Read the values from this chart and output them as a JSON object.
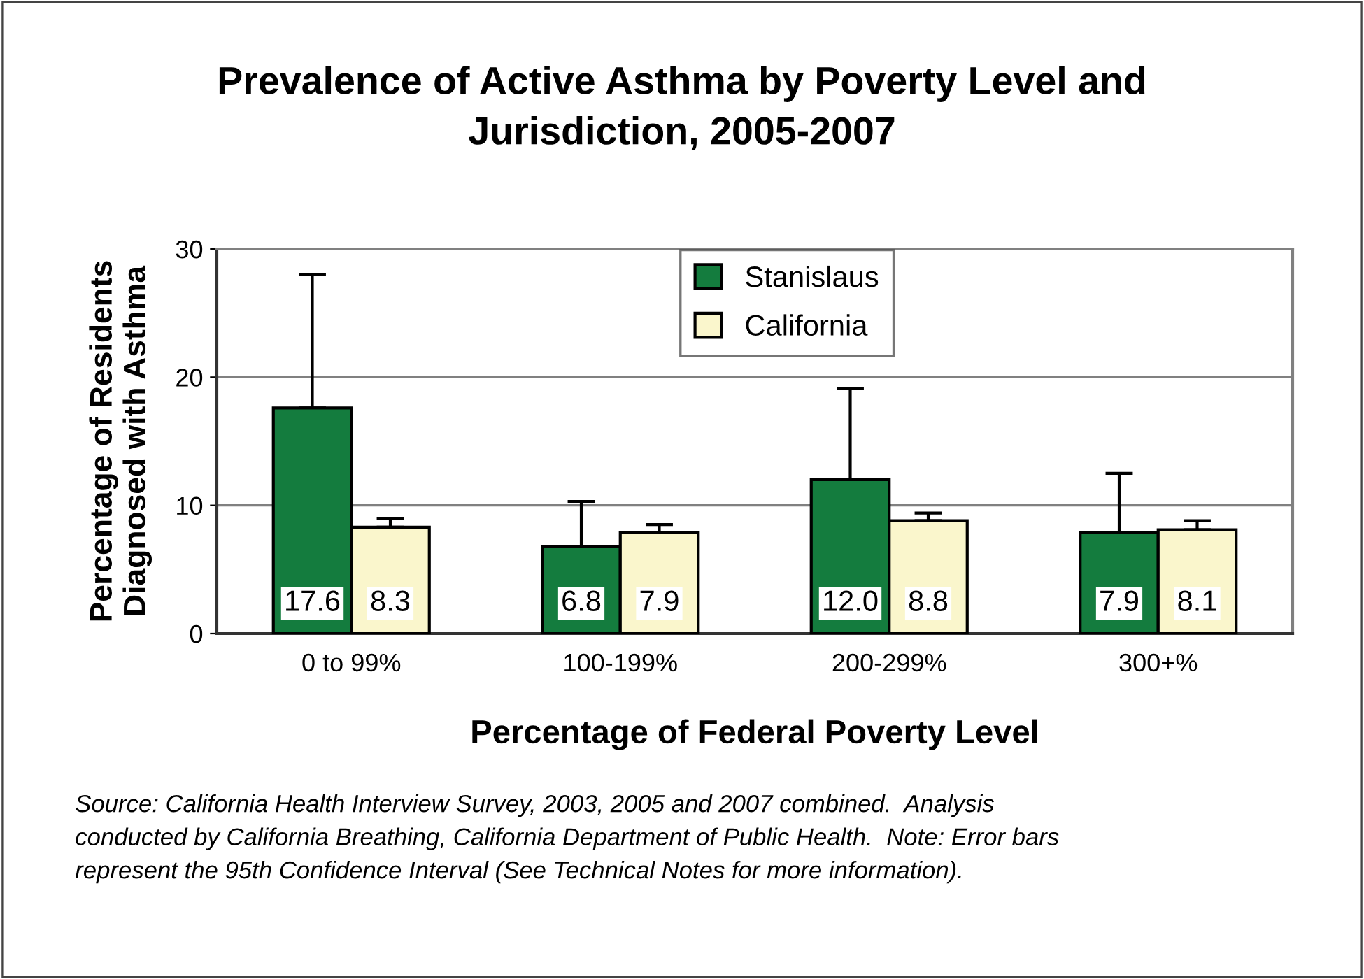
{
  "chart_data": {
    "type": "bar",
    "title": "Prevalence of Active Asthma by Poverty Level and\nJurisdiction, 2005-2007",
    "xlabel": "Percentage of Federal Poverty Level",
    "ylabel": "Percentage of Residents\nDiagnosed with Asthma",
    "categories": [
      "0 to 99%",
      "100-199%",
      "200-299%",
      "300+%"
    ],
    "series": [
      {
        "name": "Stanislaus",
        "color": "#147c3e",
        "values": [
          17.6,
          6.8,
          12.0,
          7.9
        ],
        "value_labels": [
          "17.6",
          "6.8",
          "12.0",
          "7.9"
        ],
        "errors": [
          [
            17.6,
            28.0
          ],
          [
            6.8,
            10.3
          ],
          [
            12.0,
            19.1
          ],
          [
            7.9,
            12.5
          ]
        ]
      },
      {
        "name": "California",
        "color": "#faf6cc",
        "values": [
          8.3,
          7.9,
          8.8,
          8.1
        ],
        "value_labels": [
          "8.3",
          "7.9",
          "8.8",
          "8.1"
        ],
        "errors": [
          [
            8.3,
            9.0
          ],
          [
            7.9,
            8.5
          ],
          [
            8.8,
            9.4
          ],
          [
            8.1,
            8.8
          ]
        ]
      }
    ],
    "ylim": [
      0,
      30
    ],
    "yticks": [
      0,
      10,
      20,
      30
    ],
    "grid": "y",
    "legend": "top",
    "annotations": [
      "Source: California Health Interview Survey, 2003, 2005 and 2007 combined.  Analysis\nconducted by California Breathing, California Department of Public Health.  Note: Error bars\nrepresent the 95th Confidence Interval (See Technical Notes for more information)."
    ]
  }
}
